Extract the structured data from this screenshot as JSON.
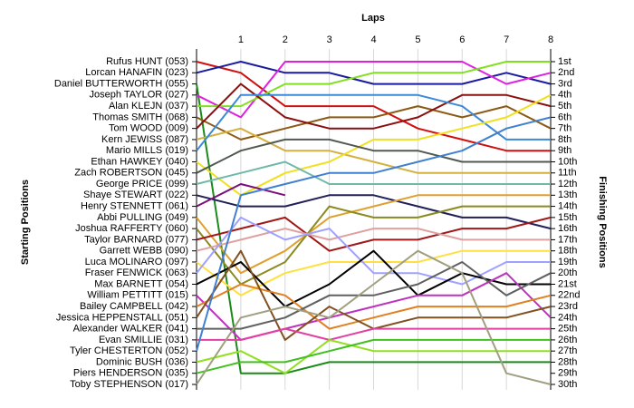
{
  "chart_data": {
    "type": "line",
    "x_axis_label": "Laps",
    "y_axis_label": "Starting Positions",
    "y2_axis_label": "Finishing Positions",
    "x": [
      0,
      1,
      2,
      3,
      4,
      5,
      6,
      7,
      8
    ],
    "xlim": [
      0,
      8
    ],
    "xticks": [
      1,
      2,
      3,
      4,
      5,
      6,
      7,
      8
    ],
    "ylim": [
      1,
      30
    ],
    "invert_y": true,
    "grid": true,
    "yticks": [
      {
        "value": 1,
        "label": "1st"
      },
      {
        "value": 2,
        "label": "2nd"
      },
      {
        "value": 3,
        "label": "3rd"
      },
      {
        "value": 4,
        "label": "4th"
      },
      {
        "value": 5,
        "label": "5th"
      },
      {
        "value": 6,
        "label": "6th"
      },
      {
        "value": 7,
        "label": "7th"
      },
      {
        "value": 8,
        "label": "8th"
      },
      {
        "value": 9,
        "label": "9th"
      },
      {
        "value": 10,
        "label": "10th"
      },
      {
        "value": 11,
        "label": "11th"
      },
      {
        "value": 12,
        "label": "12th"
      },
      {
        "value": 13,
        "label": "13th"
      },
      {
        "value": 14,
        "label": "14th"
      },
      {
        "value": 15,
        "label": "15th"
      },
      {
        "value": 16,
        "label": "16th"
      },
      {
        "value": 17,
        "label": "17th"
      },
      {
        "value": 18,
        "label": "18th"
      },
      {
        "value": 19,
        "label": "19th"
      },
      {
        "value": 20,
        "label": "20th"
      },
      {
        "value": 21,
        "label": "21st"
      },
      {
        "value": 22,
        "label": "22nd"
      },
      {
        "value": 23,
        "label": "23rd"
      },
      {
        "value": 24,
        "label": "24th"
      },
      {
        "value": 25,
        "label": "25th"
      },
      {
        "value": 26,
        "label": "26th"
      },
      {
        "value": 27,
        "label": "27th"
      },
      {
        "value": 28,
        "label": "28th"
      },
      {
        "value": 29,
        "label": "29th"
      },
      {
        "value": 30,
        "label": "30th"
      }
    ],
    "series": [
      {
        "name": "Rufus HUNT (053)",
        "color": "#d01010",
        "values": [
          1,
          2,
          5,
          5,
          5,
          7,
          8,
          9,
          9
        ]
      },
      {
        "name": "Lorcan HANAFIN (023)",
        "color": "#1a1aa0",
        "values": [
          2,
          1,
          2,
          2,
          3,
          3,
          3,
          2,
          3
        ]
      },
      {
        "name": "Daniel BUTTERWORTH (055)",
        "color": "#1a8a1a",
        "values": [
          3,
          29,
          29,
          28,
          28,
          28,
          28,
          28,
          28
        ]
      },
      {
        "name": "Joseph TAYLOR (027)",
        "color": "#e020e0",
        "values": [
          4,
          6,
          1,
          1,
          1,
          1,
          1,
          3,
          2
        ]
      },
      {
        "name": "Alan KLEJN (037)",
        "color": "#80e020",
        "values": [
          5,
          5,
          3,
          3,
          2,
          2,
          2,
          1,
          1
        ]
      },
      {
        "name": "Thomas SMITH (068)",
        "color": "#8b5a14",
        "values": [
          6,
          8,
          7,
          6,
          6,
          5,
          6,
          5,
          7
        ]
      },
      {
        "name": "Tom WOOD (009)",
        "color": "#8b1010",
        "values": [
          7,
          3,
          6,
          7,
          7,
          6,
          4,
          4,
          5
        ]
      },
      {
        "name": "Kern JEWISS (087)",
        "color": "#d4b040",
        "values": [
          8,
          7,
          9,
          9,
          10,
          11,
          11,
          11,
          11
        ]
      },
      {
        "name": "Mario MILLS (019)",
        "color": "#3a8ad8",
        "values": [
          9,
          4,
          4,
          4,
          4,
          4,
          5,
          8,
          8
        ]
      },
      {
        "name": "Ethan HAWKEY (040)",
        "color": "#f0e020",
        "values": [
          10,
          13,
          11,
          10,
          8,
          8,
          7,
          6,
          4
        ]
      },
      {
        "name": "Zach ROBERTSON (045)",
        "color": "#505a50",
        "values": [
          11,
          9,
          8,
          8,
          9,
          9,
          10,
          10,
          10
        ]
      },
      {
        "name": "George PRICE (099)",
        "color": "#70b8a8",
        "values": [
          12,
          11,
          10,
          12,
          12,
          12,
          12,
          12,
          12
        ]
      },
      {
        "name": "Shaye STEWART (022)",
        "color": "#20205a",
        "values": [
          13,
          14,
          14,
          13,
          13,
          14,
          15,
          15,
          16
        ]
      },
      {
        "name": "Henry STENNETT (061)",
        "color": "#7a107a",
        "values": [
          14,
          12,
          13,
          null,
          null,
          null,
          null,
          null,
          null
        ]
      },
      {
        "name": "Abbi PULLING (049)",
        "color": "#e0a030",
        "values": [
          15,
          20,
          18,
          15,
          14,
          13,
          13,
          13,
          13
        ]
      },
      {
        "name": "Joshua RAFFERTY (060)",
        "color": "#8a8a20",
        "values": [
          16,
          21,
          19,
          14,
          15,
          15,
          14,
          14,
          14
        ]
      },
      {
        "name": "Taylor BARNARD (077)",
        "color": "#a01818",
        "values": [
          17,
          16,
          15,
          18,
          17,
          17,
          16,
          16,
          15
        ]
      },
      {
        "name": "Garrett WEBB (090)",
        "color": "#e0a0a0",
        "values": [
          18,
          17,
          16,
          17,
          16,
          16,
          17,
          17,
          17
        ]
      },
      {
        "name": "Luca MOLINARO (097)",
        "color": "#ffe040",
        "values": [
          19,
          22,
          20,
          19,
          19,
          19,
          18,
          18,
          18
        ]
      },
      {
        "name": "Fraser FENWICK (063)",
        "color": "#a0a0ff",
        "values": [
          20,
          15,
          17,
          16,
          20,
          20,
          21,
          19,
          19
        ]
      },
      {
        "name": "Max BARNETT (054)",
        "color": "#000000",
        "values": [
          21,
          19,
          23,
          21,
          18,
          22,
          20,
          21,
          21
        ]
      },
      {
        "name": "William PETTITT (015)",
        "color": "#c030c0",
        "values": [
          22,
          26,
          25,
          24,
          23,
          22,
          22,
          20,
          24
        ]
      },
      {
        "name": "Bailey CAMPBELL (042)",
        "color": "#e08020",
        "values": [
          23,
          21,
          22,
          25,
          24,
          23,
          23,
          23,
          22
        ]
      },
      {
        "name": "Jessica HEPPENSTALL (051)",
        "color": "#805020",
        "values": [
          24,
          18,
          26,
          23,
          25,
          24,
          24,
          24,
          23
        ]
      },
      {
        "name": "Alexander WALKER (041)",
        "color": "#606060",
        "values": [
          25,
          25,
          24,
          22,
          22,
          21,
          19,
          22,
          20
        ]
      },
      {
        "name": "Evan SMILLIE (031)",
        "color": "#e040a0",
        "values": [
          26,
          26,
          25,
          26,
          25,
          25,
          25,
          25,
          25
        ]
      },
      {
        "name": "Tyler CHESTERTON (052)",
        "color": "#4080d0",
        "values": [
          27,
          13,
          12,
          11,
          11,
          10,
          9,
          7,
          6
        ]
      },
      {
        "name": "Dominic BUSH (036)",
        "color": "#90e020",
        "values": [
          28,
          27,
          29,
          26,
          27,
          27,
          27,
          27,
          27
        ]
      },
      {
        "name": "Piers HENDERSON (035)",
        "color": "#40c020",
        "values": [
          29,
          28,
          28,
          27,
          26,
          26,
          26,
          26,
          26
        ]
      },
      {
        "name": "Toby STEPHENSON (017)",
        "color": "#a0a080",
        "values": [
          30,
          24,
          23,
          24,
          21,
          18,
          20,
          29,
          30
        ]
      }
    ]
  }
}
